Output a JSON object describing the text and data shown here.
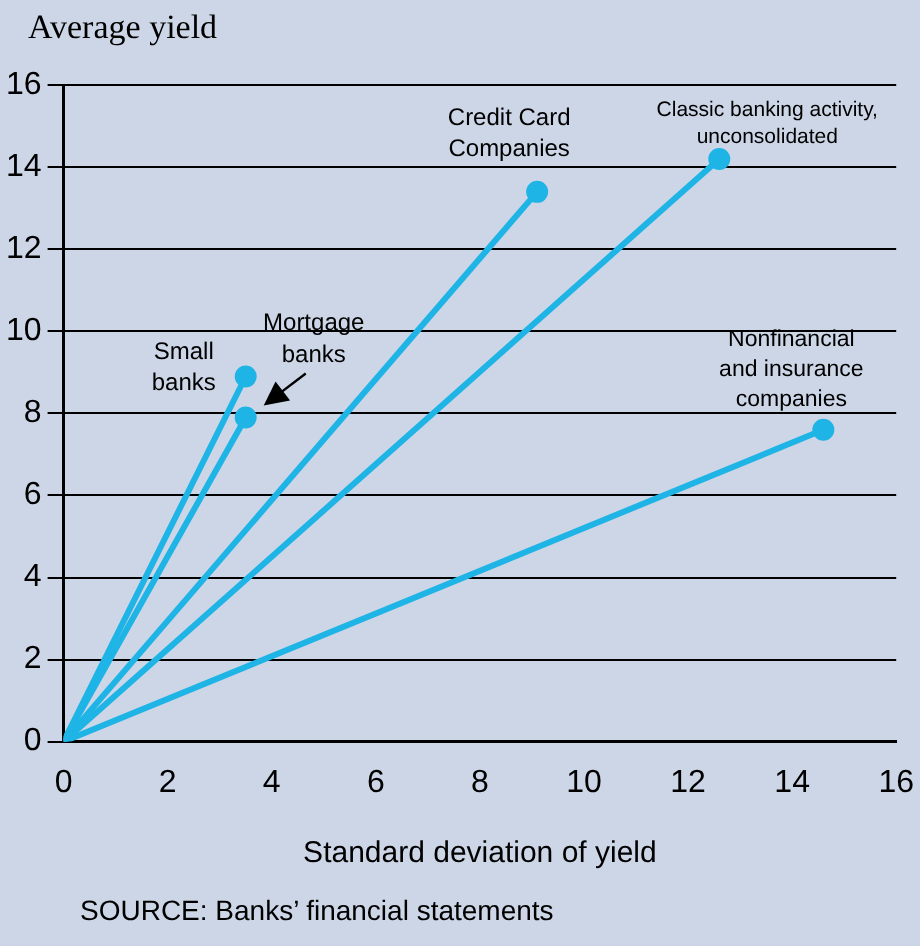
{
  "chart_data": {
    "type": "line",
    "ylabel": "Average yield",
    "xlabel": "Standard deviation of yield",
    "annotations": [
      "SOURCE: Banks’ financial statements"
    ],
    "xlim": [
      0,
      16
    ],
    "xticks": [
      0,
      2,
      4,
      6,
      8,
      10,
      12,
      14,
      16
    ],
    "ylim": [
      0,
      16
    ],
    "yticks": [
      0,
      2,
      4,
      6,
      8,
      10,
      12,
      14,
      16
    ],
    "grid": "y",
    "marker": "circle",
    "line_style": "solid",
    "series": [
      {
        "name": "Small banks",
        "color": "#1fb4e6",
        "x": [
          0,
          3.5
        ],
        "values": [
          0,
          8.9
        ]
      },
      {
        "name": "Mortgage banks",
        "color": "#1fb4e6",
        "x": [
          0,
          3.5
        ],
        "values": [
          0,
          7.9
        ]
      },
      {
        "name": "Credit Card Companies",
        "color": "#1fb4e6",
        "x": [
          0,
          9.1
        ],
        "values": [
          0,
          13.4
        ]
      },
      {
        "name": "Classic banking activity, unconsolidated",
        "color": "#1fb4e6",
        "x": [
          0,
          12.6
        ],
        "values": [
          0,
          14.2
        ]
      },
      {
        "name": "Nonfinancial and insurance companies",
        "color": "#1fb4e6",
        "x": [
          0,
          14.6
        ],
        "values": [
          0,
          7.6
        ]
      }
    ]
  }
}
